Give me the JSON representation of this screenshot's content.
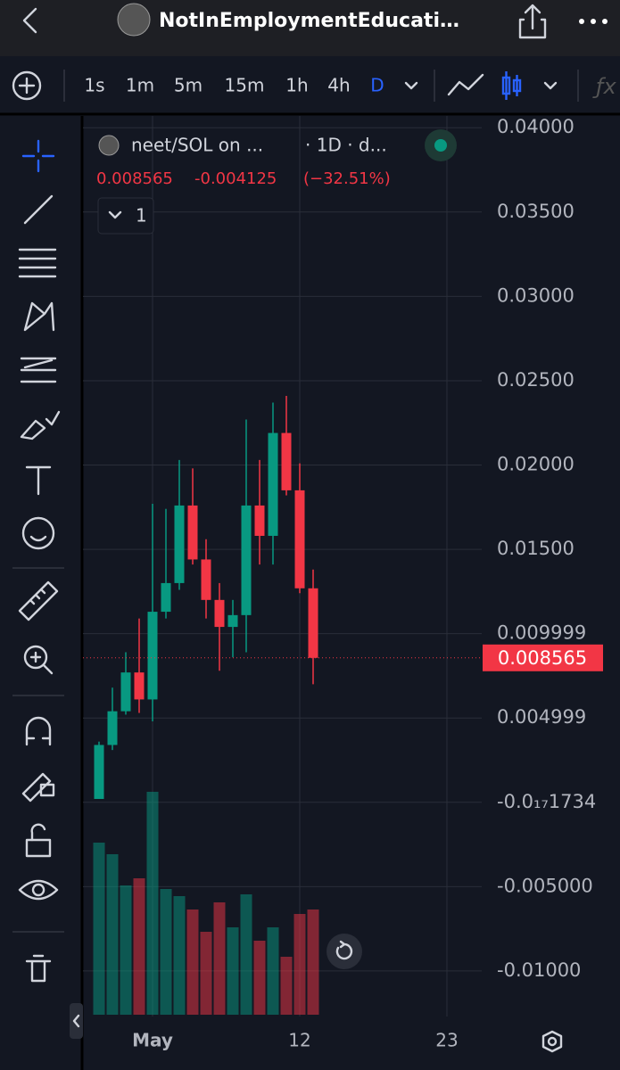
{
  "header": {
    "title": "NotInEmploymentEducati…"
  },
  "toolbar": {
    "intervals": [
      "1s",
      "1m",
      "5m",
      "15m",
      "1h",
      "4h",
      "D"
    ]
  },
  "chart_data": {
    "type": "candlestick",
    "title": "neet/SOL on ...",
    "subtitle": "· 1D · d...",
    "change": "-0.004125",
    "change_percent": "(−32.51%)",
    "collapsed_count": "1",
    "x": [
      0,
      1,
      2,
      3,
      4,
      5,
      6,
      7,
      8,
      9,
      10,
      11,
      12,
      13,
      14,
      15,
      16
    ],
    "open": [
      0.0002,
      0.0034,
      0.0054,
      0.0077,
      0.0061,
      0.0113,
      0.013,
      0.0176,
      0.0144,
      0.012,
      0.0104,
      0.0111,
      0.0176,
      0.0158,
      0.0219,
      0.0185,
      0.01269
    ],
    "high": [
      0.0036,
      0.0068,
      0.0089,
      0.0109,
      0.0177,
      0.0174,
      0.0203,
      0.0198,
      0.0156,
      0.013,
      0.012,
      0.0227,
      0.0203,
      0.0237,
      0.0241,
      0.0201,
      0.0138
    ],
    "low": [
      0.0002,
      0.0031,
      0.0052,
      0.0053,
      0.0048,
      0.0109,
      0.0126,
      0.0141,
      0.0109,
      0.0078,
      0.0086,
      0.0089,
      0.0141,
      0.0141,
      0.0182,
      0.0124,
      0.007
    ],
    "close": [
      0.0034,
      0.0054,
      0.0077,
      0.0061,
      0.0113,
      0.013,
      0.0176,
      0.0144,
      0.012,
      0.0104,
      0.0111,
      0.0176,
      0.0158,
      0.0219,
      0.0185,
      0.01269,
      0.008565
    ],
    "volume": [
      193,
      180,
      145,
      153,
      250,
      141,
      133,
      118,
      93,
      126,
      98,
      135,
      83,
      98,
      65,
      113,
      118
    ],
    "up_color": "#089981",
    "down_color": "#f23645",
    "xlim": [
      -1.2,
      28.6
    ],
    "xticks": [
      {
        "value": 4,
        "label": "May"
      },
      {
        "value": 15,
        "label": "12"
      },
      {
        "value": 26,
        "label": "23"
      }
    ],
    "ylim": [
      -0.0127,
      0.0407
    ],
    "yticks": [
      {
        "value": 0.04,
        "label": "0.04000"
      },
      {
        "value": 0.035,
        "label": "0.03500"
      },
      {
        "value": 0.03,
        "label": "0.03000"
      },
      {
        "value": 0.025,
        "label": "0.02500"
      },
      {
        "value": 0.02,
        "label": "0.02000"
      },
      {
        "value": 0.015,
        "label": "0.01500"
      },
      {
        "value": 0.01,
        "label": "0.009999"
      },
      {
        "value": 0.005,
        "label": "0.004999"
      },
      {
        "value": 0,
        "label": "-0.0₁₇1734"
      },
      {
        "value": -0.005,
        "label": "-0.005000"
      },
      {
        "value": -0.01,
        "label": "-0.01000"
      }
    ],
    "grid": true
  }
}
